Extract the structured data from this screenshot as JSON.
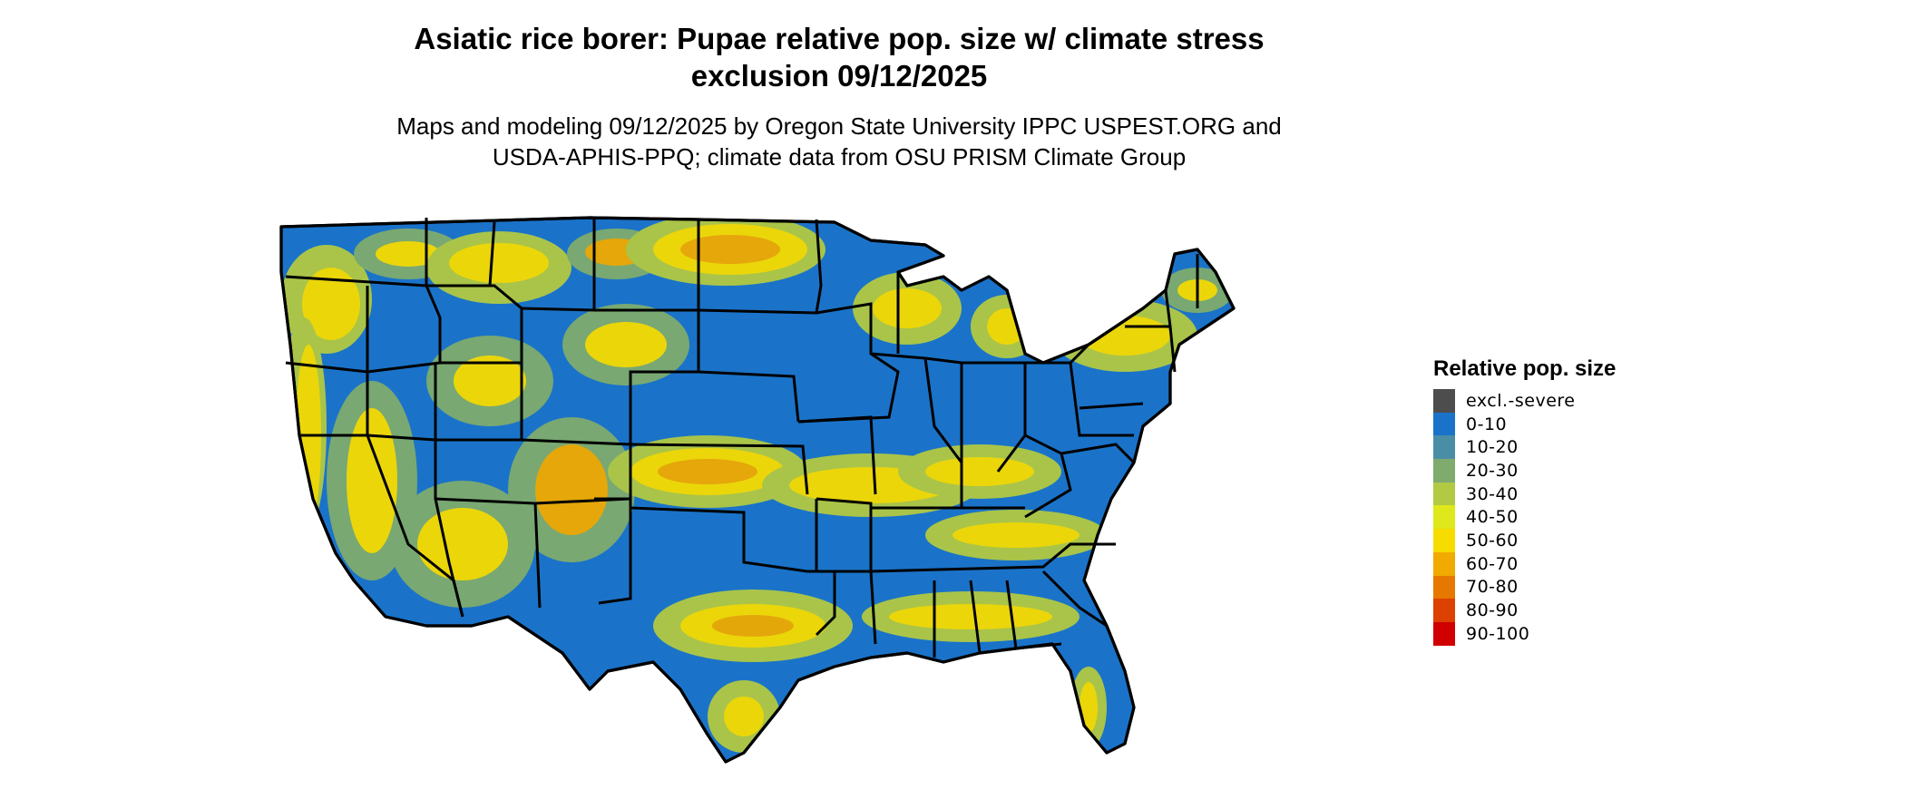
{
  "header": {
    "title_line1": "Asiatic rice borer: Pupae relative pop. size w/ climate stress",
    "title_line2": "exclusion 09/12/2025",
    "subtitle_line1": "Maps and modeling 09/12/2025 by Oregon State University IPPC USPEST.ORG and",
    "subtitle_line2": "USDA-APHIS-PPQ; climate data from OSU PRISM Climate Group"
  },
  "map": {
    "base_color": "#1a73c9",
    "border_color": "#000000"
  },
  "legend": {
    "title": "Relative pop. size",
    "items": [
      {
        "label": "excl.-severe",
        "color": "#4d4d4d"
      },
      {
        "label": "0-10",
        "color": "#1a73c9"
      },
      {
        "label": "10-20",
        "color": "#4a8ea6"
      },
      {
        "label": "20-30",
        "color": "#7fab6e"
      },
      {
        "label": "30-40",
        "color": "#b1c943"
      },
      {
        "label": "40-50",
        "color": "#dfe81a"
      },
      {
        "label": "50-60",
        "color": "#f7dc00"
      },
      {
        "label": "60-70",
        "color": "#f0aa00"
      },
      {
        "label": "70-80",
        "color": "#e67800"
      },
      {
        "label": "80-90",
        "color": "#dd4100"
      },
      {
        "label": "90-100",
        "color": "#d10000"
      }
    ]
  }
}
